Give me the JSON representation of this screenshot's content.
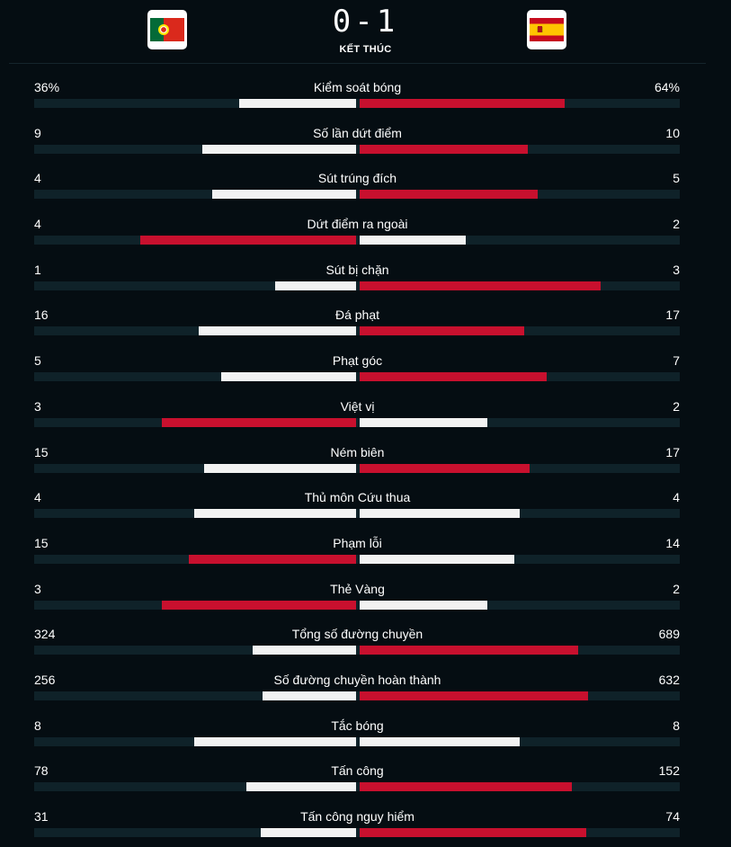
{
  "match": {
    "score": "0-1",
    "status": "KẾT THÚC",
    "home_flag": "portugal-flag",
    "away_flag": "spain-flag"
  },
  "colors": {
    "leader": "#c8102e",
    "other": "#f2f2f2",
    "track": "#0f2229",
    "background": "#050d12"
  },
  "stats": [
    {
      "label": "Kiểm soát bóng",
      "home": "36%",
      "away": "64%",
      "home_num": 36,
      "away_num": 64,
      "max": 100
    },
    {
      "label": "Số lần dứt điểm",
      "home": "9",
      "away": "10",
      "home_num": 9,
      "away_num": 10,
      "max": 19
    },
    {
      "label": "Sút trúng đích",
      "home": "4",
      "away": "5",
      "home_num": 4,
      "away_num": 5,
      "max": 9
    },
    {
      "label": "Dứt điểm ra ngoài",
      "home": "4",
      "away": "2",
      "home_num": 4,
      "away_num": 2,
      "max": 6
    },
    {
      "label": "Sút bị chặn",
      "home": "1",
      "away": "3",
      "home_num": 1,
      "away_num": 3,
      "max": 4
    },
    {
      "label": "Đá phạt",
      "home": "16",
      "away": "17",
      "home_num": 16,
      "away_num": 17,
      "max": 33
    },
    {
      "label": "Phạt góc",
      "home": "5",
      "away": "7",
      "home_num": 5,
      "away_num": 7,
      "max": 12
    },
    {
      "label": "Việt vị",
      "home": "3",
      "away": "2",
      "home_num": 3,
      "away_num": 2,
      "max": 5
    },
    {
      "label": "Ném biên",
      "home": "15",
      "away": "17",
      "home_num": 15,
      "away_num": 17,
      "max": 32
    },
    {
      "label": "Thủ môn Cứu thua",
      "home": "4",
      "away": "4",
      "home_num": 4,
      "away_num": 4,
      "max": 8
    },
    {
      "label": "Phạm lỗi",
      "home": "15",
      "away": "14",
      "home_num": 15,
      "away_num": 14,
      "max": 29
    },
    {
      "label": "Thẻ Vàng",
      "home": "3",
      "away": "2",
      "home_num": 3,
      "away_num": 2,
      "max": 5
    },
    {
      "label": "Tổng số đường chuyền",
      "home": "324",
      "away": "689",
      "home_num": 324,
      "away_num": 689,
      "max": 1013
    },
    {
      "label": "Số đường chuyền hoàn thành",
      "home": "256",
      "away": "632",
      "home_num": 256,
      "away_num": 632,
      "max": 888
    },
    {
      "label": "Tắc bóng",
      "home": "8",
      "away": "8",
      "home_num": 8,
      "away_num": 8,
      "max": 16
    },
    {
      "label": "Tấn công",
      "home": "78",
      "away": "152",
      "home_num": 78,
      "away_num": 152,
      "max": 230
    },
    {
      "label": "Tấn công nguy hiểm",
      "home": "31",
      "away": "74",
      "home_num": 31,
      "away_num": 74,
      "max": 105
    }
  ]
}
